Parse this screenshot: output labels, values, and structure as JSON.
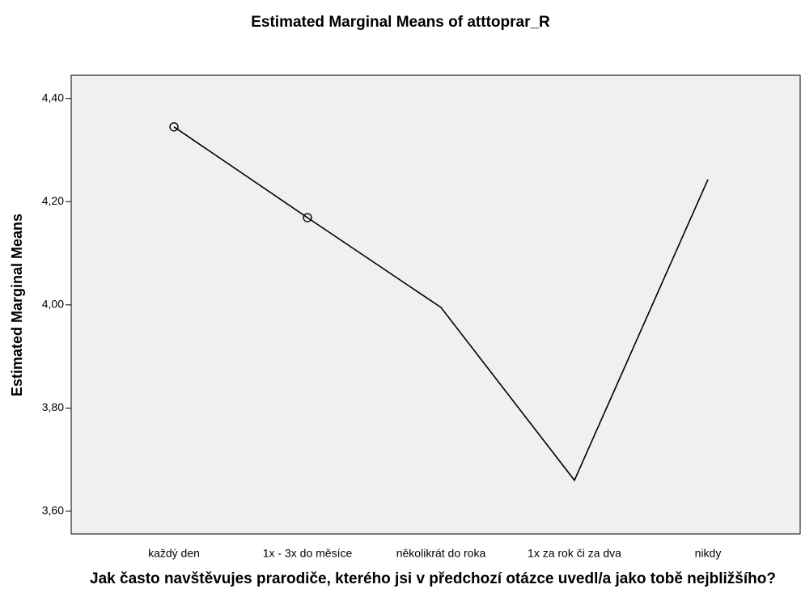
{
  "chart_data": {
    "type": "line",
    "title": "Estimated Marginal Means of atttoprar_R",
    "y_label": "Estimated Marginal Means",
    "x_label": "Jak často navštěvujes prarodiče, kterého jsi v předchozí otázce uvedl/a jako tobě nejbližšího?",
    "categories": [
      "každý den",
      "1x - 3x do měsíce",
      "několikrát do roka",
      "1x za rok či za dva",
      "nikdy"
    ],
    "series": [
      {
        "name": "atttoprar_R",
        "color": "#000000",
        "values": [
          4.345,
          4.169,
          3.995,
          3.66,
          4.243
        ],
        "markers": [
          true,
          true,
          false,
          false,
          false
        ]
      }
    ],
    "ylim": [
      3.556,
      4.445
    ],
    "yticks": [
      {
        "value": 3.6,
        "label": "3,60"
      },
      {
        "value": 3.8,
        "label": "3,80"
      },
      {
        "value": 4.0,
        "label": "4,00"
      },
      {
        "value": 4.2,
        "label": "4,20"
      },
      {
        "value": 4.4,
        "label": "4,40"
      }
    ],
    "background": "#f0f0f0"
  }
}
